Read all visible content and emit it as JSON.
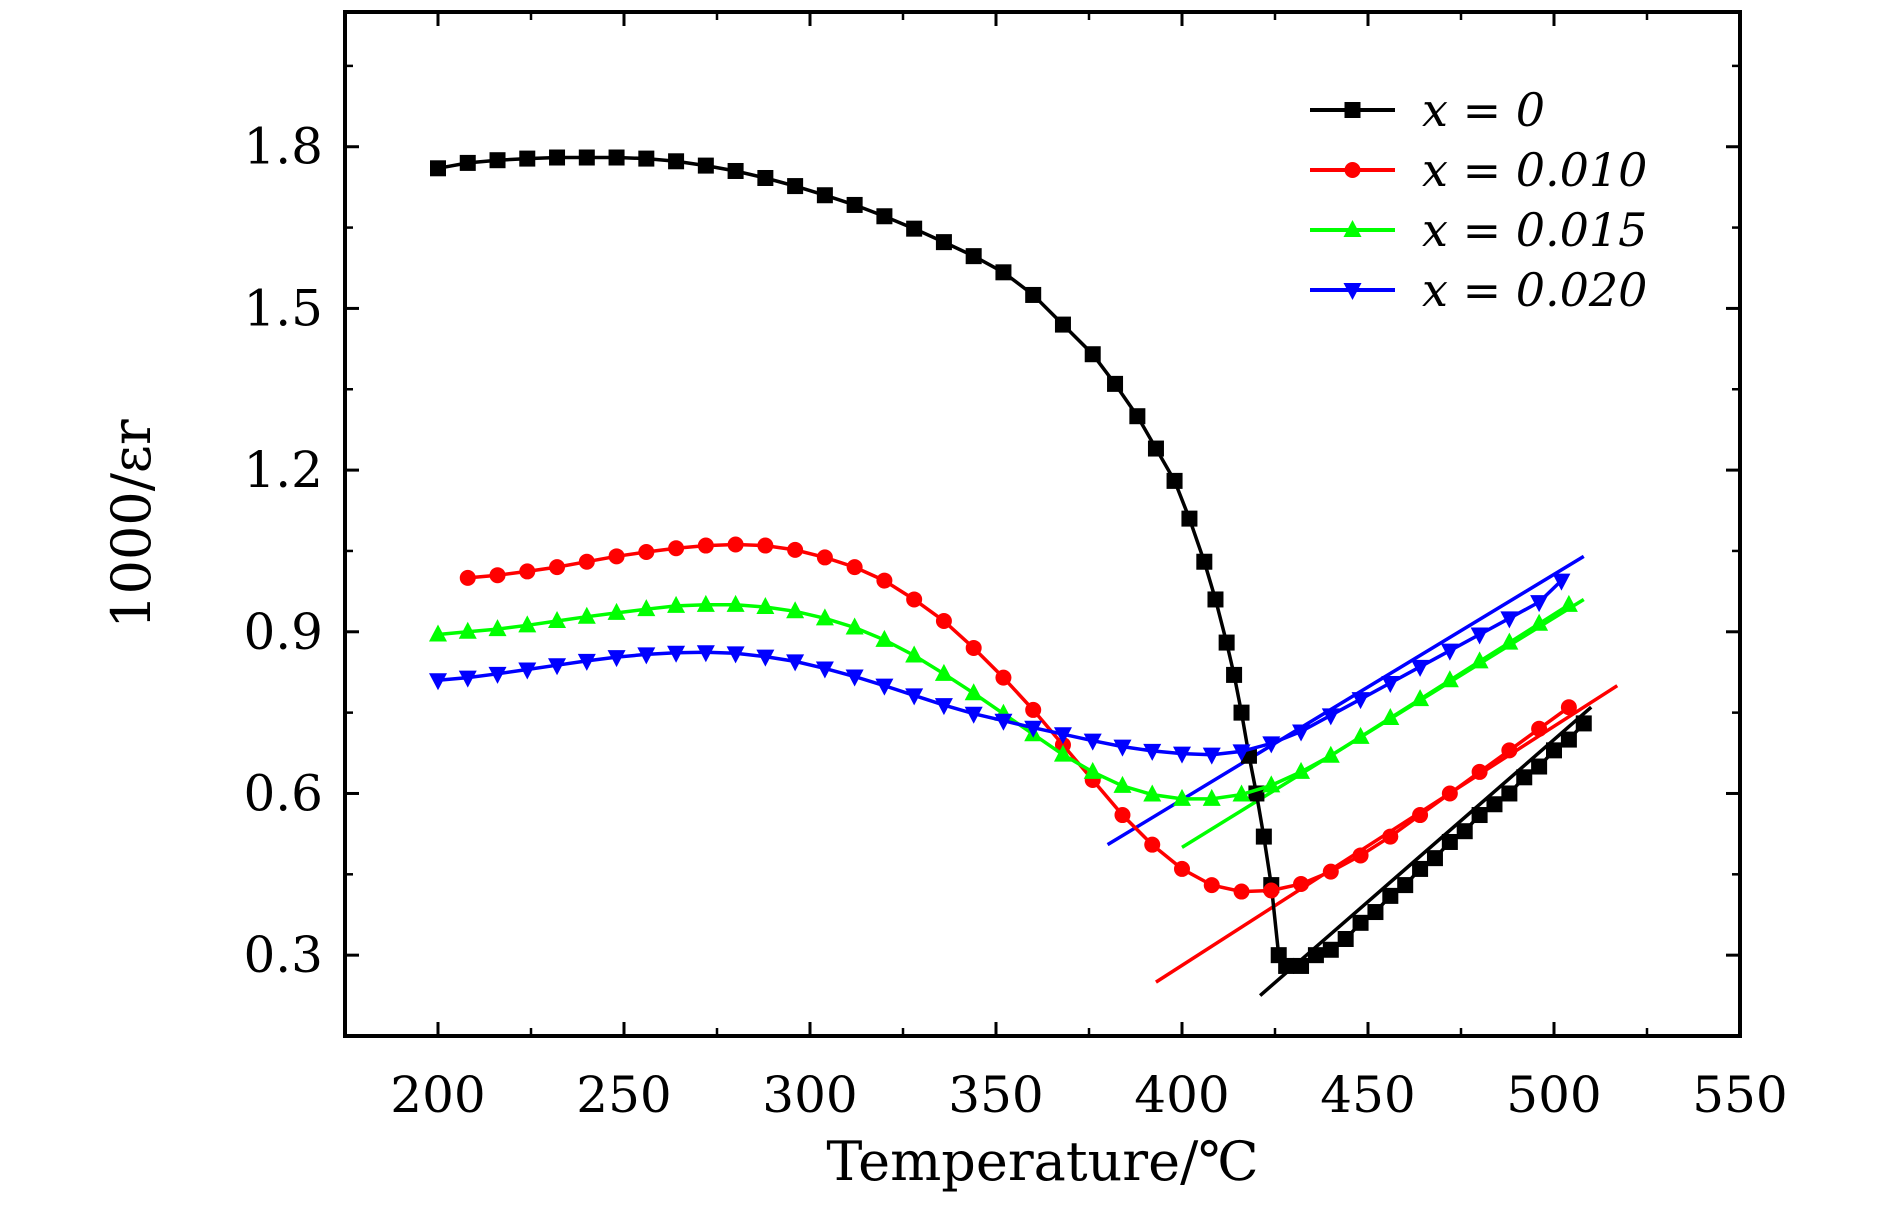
{
  "chart_data": {
    "type": "line",
    "xlabel": "Temperature/℃",
    "ylabel": "1000/εr",
    "xlim": [
      175,
      550
    ],
    "ylim": [
      0.15,
      2.05
    ],
    "xticks": [
      200,
      250,
      300,
      350,
      400,
      450,
      500,
      550
    ],
    "yticks": [
      0.3,
      0.6,
      0.9,
      1.2,
      1.5,
      1.8
    ],
    "xtick_labels": [
      "200",
      "250",
      "300",
      "350",
      "400",
      "450",
      "500",
      "550"
    ],
    "ytick_labels": [
      "0.3",
      "0.6",
      "0.9",
      "1.2",
      "1.5",
      "1.8"
    ],
    "grid": false,
    "legend_position": "top-right",
    "series": [
      {
        "name": "x = 0",
        "color": "#000000",
        "marker": "square",
        "x": [
          200,
          208,
          216,
          224,
          232,
          240,
          248,
          256,
          264,
          272,
          280,
          288,
          296,
          304,
          312,
          320,
          328,
          336,
          344,
          352,
          360,
          368,
          376,
          382,
          388,
          393,
          398,
          402,
          406,
          409,
          412,
          414,
          416,
          418,
          420,
          422,
          424,
          426,
          428,
          432,
          436,
          440,
          444,
          448,
          452,
          456,
          460,
          464,
          468,
          472,
          476,
          480,
          484,
          488,
          492,
          496,
          500,
          504,
          508
        ],
        "y": [
          1.76,
          1.77,
          1.775,
          1.778,
          1.78,
          1.78,
          1.78,
          1.778,
          1.773,
          1.765,
          1.755,
          1.742,
          1.727,
          1.71,
          1.692,
          1.671,
          1.648,
          1.623,
          1.597,
          1.567,
          1.525,
          1.47,
          1.415,
          1.36,
          1.3,
          1.24,
          1.18,
          1.11,
          1.03,
          0.96,
          0.88,
          0.82,
          0.75,
          0.67,
          0.6,
          0.52,
          0.43,
          0.3,
          0.28,
          0.28,
          0.3,
          0.31,
          0.33,
          0.36,
          0.38,
          0.41,
          0.43,
          0.46,
          0.48,
          0.51,
          0.53,
          0.56,
          0.58,
          0.6,
          0.63,
          0.65,
          0.68,
          0.7,
          0.73
        ]
      },
      {
        "name": "x = 0.010",
        "color": "#ff0000",
        "marker": "circle",
        "x": [
          208,
          216,
          224,
          232,
          240,
          248,
          256,
          264,
          272,
          280,
          288,
          296,
          304,
          312,
          320,
          328,
          336,
          344,
          352,
          360,
          368,
          376,
          384,
          392,
          400,
          408,
          416,
          424,
          432,
          440,
          448,
          456,
          464,
          472,
          480,
          488,
          496,
          504
        ],
        "y": [
          1.0,
          1.005,
          1.012,
          1.02,
          1.03,
          1.04,
          1.048,
          1.055,
          1.06,
          1.062,
          1.06,
          1.052,
          1.038,
          1.02,
          0.995,
          0.96,
          0.92,
          0.87,
          0.815,
          0.755,
          0.69,
          0.625,
          0.56,
          0.505,
          0.46,
          0.43,
          0.418,
          0.42,
          0.432,
          0.455,
          0.485,
          0.52,
          0.56,
          0.6,
          0.64,
          0.68,
          0.72,
          0.76
        ]
      },
      {
        "name": "x = 0.015",
        "color": "#00ff00",
        "marker": "triangle-up",
        "x": [
          200,
          208,
          216,
          224,
          232,
          240,
          248,
          256,
          264,
          272,
          280,
          288,
          296,
          304,
          312,
          320,
          328,
          336,
          344,
          352,
          360,
          368,
          376,
          384,
          392,
          400,
          408,
          416,
          424,
          432,
          440,
          448,
          456,
          464,
          472,
          480,
          488,
          496,
          504
        ],
        "y": [
          0.895,
          0.9,
          0.905,
          0.912,
          0.92,
          0.928,
          0.935,
          0.942,
          0.948,
          0.95,
          0.95,
          0.946,
          0.938,
          0.925,
          0.908,
          0.885,
          0.856,
          0.822,
          0.786,
          0.748,
          0.71,
          0.672,
          0.64,
          0.614,
          0.598,
          0.59,
          0.59,
          0.598,
          0.615,
          0.64,
          0.67,
          0.705,
          0.74,
          0.775,
          0.81,
          0.845,
          0.88,
          0.915,
          0.95
        ]
      },
      {
        "name": "x = 0.020",
        "color": "#0000ff",
        "marker": "triangle-down",
        "x": [
          200,
          208,
          216,
          224,
          232,
          240,
          248,
          256,
          264,
          272,
          280,
          288,
          296,
          304,
          312,
          320,
          328,
          336,
          344,
          352,
          360,
          368,
          376,
          384,
          392,
          400,
          408,
          416,
          424,
          432,
          440,
          448,
          456,
          464,
          472,
          480,
          488,
          496,
          502
        ],
        "y": [
          0.81,
          0.815,
          0.822,
          0.83,
          0.838,
          0.846,
          0.853,
          0.858,
          0.861,
          0.862,
          0.86,
          0.854,
          0.845,
          0.832,
          0.817,
          0.8,
          0.782,
          0.764,
          0.748,
          0.735,
          0.722,
          0.71,
          0.698,
          0.687,
          0.679,
          0.674,
          0.672,
          0.678,
          0.693,
          0.715,
          0.745,
          0.775,
          0.805,
          0.835,
          0.865,
          0.895,
          0.925,
          0.955,
          0.995
        ]
      }
    ],
    "fit_lines": [
      {
        "color": "#000000",
        "x": [
          421,
          510
        ],
        "y": [
          0.225,
          0.76
        ]
      },
      {
        "color": "#ff0000",
        "x": [
          393,
          517
        ],
        "y": [
          0.25,
          0.8
        ]
      },
      {
        "color": "#00ff00",
        "x": [
          400,
          508
        ],
        "y": [
          0.5,
          0.96
        ]
      },
      {
        "color": "#0000ff",
        "x": [
          380,
          508
        ],
        "y": [
          0.505,
          1.04
        ]
      }
    ]
  }
}
